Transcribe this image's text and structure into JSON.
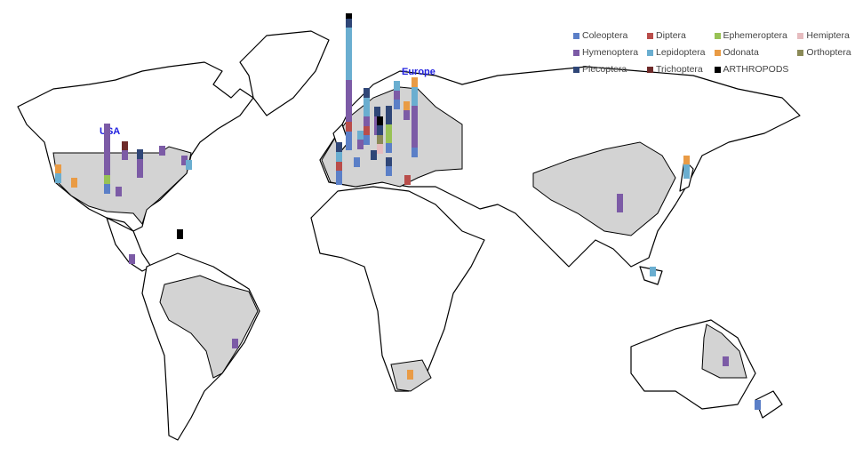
{
  "title_labels": {
    "usa": "USA",
    "europe": "Europe"
  },
  "legend": [
    {
      "name": "Coleoptera",
      "color": "#5b7fc7"
    },
    {
      "name": "Diptera",
      "color": "#b94d4a"
    },
    {
      "name": "Ephemeroptera",
      "color": "#98c255"
    },
    {
      "name": "Hemiptera",
      "color": "#e6bcbf"
    },
    {
      "name": "Hymenoptera",
      "color": "#7c5ba6"
    },
    {
      "name": "Lepidoptera",
      "color": "#6aaed0"
    },
    {
      "name": "Odonata",
      "color": "#e99b45"
    },
    {
      "name": "Orthoptera",
      "color": "#8b8a57"
    },
    {
      "name": "Plecoptera",
      "color": "#2f4677"
    },
    {
      "name": "Trichoptera",
      "color": "#6e2b2a"
    },
    {
      "name": "ARTHROPODS",
      "color": "#000000"
    }
  ],
  "stacks": [
    {
      "id": "usa-central",
      "segments": {
        "Coleoptera": 2,
        "Ephemeroptera": 2,
        "Hymenoptera": 11
      }
    },
    {
      "id": "usa-north",
      "segments": {
        "Hymenoptera": 2,
        "Trichoptera": 2
      }
    },
    {
      "id": "usa-east1",
      "segments": {
        "Hymenoptera": 4,
        "Plecoptera": 2
      }
    },
    {
      "id": "usa-ne",
      "segments": {
        "Hymenoptera": 2
      }
    },
    {
      "id": "usa-south",
      "segments": {
        "Hymenoptera": 2
      }
    },
    {
      "id": "usa-west",
      "segments": {
        "Lepidoptera": 2,
        "Odonata": 2
      }
    },
    {
      "id": "usa-sw",
      "segments": {
        "Odonata": 2
      }
    },
    {
      "id": "usa-east2",
      "segments": {
        "Hymenoptera": 2
      }
    },
    {
      "id": "usa-east3",
      "segments": {
        "Lepidoptera": 2
      }
    },
    {
      "id": "caribbean",
      "segments": {
        "ARTHROPODS": 2
      }
    },
    {
      "id": "central-america",
      "segments": {
        "Hymenoptera": 2
      }
    },
    {
      "id": "brazil",
      "segments": {
        "Hymenoptera": 2
      }
    },
    {
      "id": "south-africa",
      "segments": {
        "Odonata": 2
      }
    },
    {
      "id": "china",
      "segments": {
        "Hymenoptera": 4
      }
    },
    {
      "id": "japan",
      "segments": {
        "Lepidoptera": 3,
        "Odonata": 2
      }
    },
    {
      "id": "malaysia",
      "segments": {
        "Lepidoptera": 2
      }
    },
    {
      "id": "australia",
      "segments": {
        "Hymenoptera": 2
      }
    },
    {
      "id": "new-zealand",
      "segments": {
        "Coleoptera": 2
      }
    },
    {
      "id": "eu-uk",
      "segments": {
        "Coleoptera": 4,
        "Diptera": 2,
        "Hymenoptera": 9,
        "Lepidoptera": 11,
        "Plecoptera": 2,
        "ARTHROPODS": 1
      }
    },
    {
      "id": "eu-spain",
      "segments": {
        "Coleoptera": 3,
        "Diptera": 2,
        "Lepidoptera": 2,
        "Plecoptera": 2
      }
    },
    {
      "id": "eu-france",
      "segments": {
        "Hymenoptera": 2,
        "Lepidoptera": 2
      }
    },
    {
      "id": "eu-belgium",
      "segments": {
        "Coleoptera": 2,
        "Diptera": 2,
        "Hymenoptera": 2,
        "Lepidoptera": 4,
        "Plecoptera": 2
      }
    },
    {
      "id": "eu-swiss",
      "segments": {
        "Plecoptera": 2
      }
    },
    {
      "id": "eu-germany",
      "segments": {
        "Plecoptera": 2,
        "Hymenoptera": 4
      }
    },
    {
      "id": "eu-czech",
      "segments": {
        "Plecoptera": 2,
        "Hemiptera": 2,
        "Orthoptera": 2,
        "ARTHROPODS": 2
      }
    },
    {
      "id": "eu-poland",
      "segments": {
        "Coleoptera": 2,
        "Ephemeroptera": 4,
        "Plecoptera": 4
      }
    },
    {
      "id": "eu-balkans",
      "segments": {
        "Coleoptera": 2,
        "Plecoptera": 2
      }
    },
    {
      "id": "eu-sweden",
      "segments": {
        "Coleoptera": 2,
        "Hymenoptera": 2,
        "Lepidoptera": 2
      }
    },
    {
      "id": "eu-finland",
      "segments": {
        "Hymenoptera": 2,
        "Odonata": 2
      }
    },
    {
      "id": "eu-russia",
      "segments": {
        "Coleoptera": 2,
        "Hymenoptera": 9,
        "Lepidoptera": 4,
        "Odonata": 2
      }
    },
    {
      "id": "eu-france-s",
      "segments": {
        "Coleoptera": 2
      }
    },
    {
      "id": "eu-greece",
      "segments": {
        "Diptera": 2
      }
    }
  ]
}
